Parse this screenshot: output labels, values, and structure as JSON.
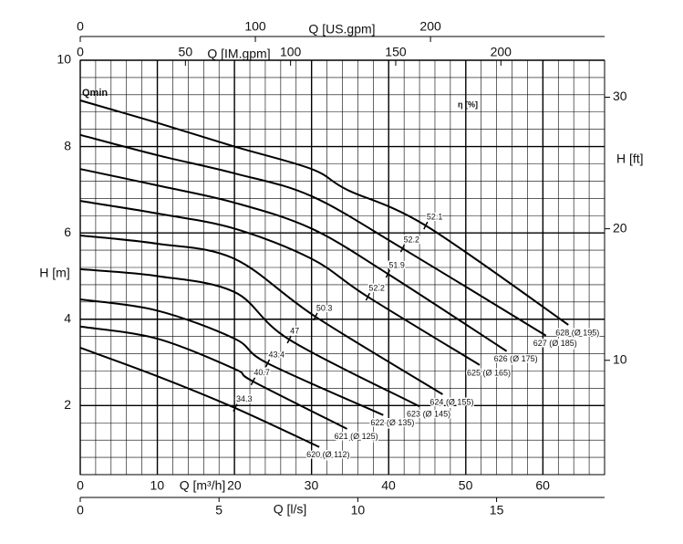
{
  "chart_data": {
    "type": "line",
    "ylabel": "H [m]",
    "xlabel": "Q [m³/h]",
    "xlim": [
      0,
      68
    ],
    "xticks": [
      0,
      10,
      20,
      30,
      40,
      50,
      60
    ],
    "x_minor_ticks": [
      0,
      2,
      4,
      6,
      8,
      10,
      12,
      14,
      16,
      18,
      20,
      22,
      24,
      26,
      28,
      30,
      32,
      34,
      36,
      38,
      40,
      42,
      44,
      46,
      48,
      50,
      52,
      54,
      56,
      58,
      60,
      62,
      64,
      66,
      68
    ],
    "ylim": [
      0.4,
      10
    ],
    "yticks": [
      2,
      4,
      6,
      8,
      10
    ],
    "y_minor_ticks": [
      0.4,
      0.8,
      1.2,
      1.6,
      2.0,
      2.4,
      2.8,
      3.2,
      3.6,
      4.0,
      4.4,
      4.8,
      5.2,
      5.6,
      6.0,
      6.4,
      6.8,
      7.2,
      7.6,
      8.0,
      8.4,
      8.8,
      9.2,
      9.6,
      10.0
    ],
    "grid": true,
    "color": "#000000",
    "x_ls": {
      "label": "Q [l/s]",
      "lim": [
        0,
        18.89
      ],
      "ticks": [
        0,
        5,
        10,
        15
      ]
    },
    "x_usgpm": {
      "label": "Q [US.gpm]",
      "lim": [
        0,
        299.4
      ],
      "ticks": [
        0,
        100,
        200
      ]
    },
    "x_imgpm": {
      "label": "Q [IM.gpm]",
      "lim": [
        0,
        249.3
      ],
      "ticks": [
        0,
        50,
        100,
        150,
        200
      ]
    },
    "y_ft": {
      "label": "H [ft]",
      "lim": [
        1.31,
        32.81
      ],
      "ticks": [
        10,
        20,
        30
      ]
    },
    "annotations": [
      "Qmin",
      "η [%]"
    ],
    "series": [
      {
        "name": "620 (Ø 112)",
        "x": [
          0,
          10,
          20,
          31
        ],
        "values": [
          3.34,
          2.68,
          1.95,
          1.04
        ],
        "eta": 34.3,
        "eta_x": 20.1,
        "eta_y": 1.95
      },
      {
        "name": "621 (Ø 125)",
        "x": [
          0,
          10,
          20,
          22.4,
          34.6
        ],
        "values": [
          3.83,
          3.55,
          2.85,
          2.56,
          1.46
        ],
        "eta": 40.7,
        "eta_x": 22.4,
        "eta_y": 2.56
      },
      {
        "name": "622 (Ø 135)",
        "x": [
          0,
          10,
          20,
          24.3,
          39.3
        ],
        "values": [
          4.46,
          4.2,
          3.55,
          2.98,
          1.78
        ],
        "eta": 43.4,
        "eta_x": 24.3,
        "eta_y": 2.98
      },
      {
        "name": "623 (Ø 145)",
        "x": [
          0,
          10,
          20,
          27.1,
          44
        ],
        "values": [
          5.16,
          5.0,
          4.63,
          3.53,
          1.98
        ],
        "eta": 47.0,
        "eta_x": 27.1,
        "eta_y": 3.53
      },
      {
        "name": "624 (Ø 155)",
        "x": [
          0,
          10,
          20,
          30.5,
          47
        ],
        "values": [
          5.94,
          5.75,
          5.4,
          4.06,
          2.26
        ],
        "eta": 50.3,
        "eta_x": 30.5,
        "eta_y": 4.06
      },
      {
        "name": "625 (Ø 165)",
        "x": [
          0,
          10,
          20,
          30,
          37.3,
          51.8
        ],
        "values": [
          6.74,
          6.45,
          6.1,
          5.4,
          4.52,
          2.94
        ],
        "eta": 52.2,
        "eta_x": 37.3,
        "eta_y": 4.52
      },
      {
        "name": "626 (Ø 175)",
        "x": [
          0,
          10,
          20,
          30,
          39.9,
          55.3
        ],
        "values": [
          7.48,
          7.1,
          6.7,
          6.1,
          5.05,
          3.26
        ],
        "eta": 51.9,
        "eta_x": 39.9,
        "eta_y": 5.05
      },
      {
        "name": "627 (Ø 185)",
        "x": [
          0,
          10,
          20,
          30,
          41.8,
          60.4
        ],
        "values": [
          8.27,
          7.8,
          7.38,
          6.85,
          5.64,
          3.62
        ],
        "eta": 52.2,
        "eta_x": 41.8,
        "eta_y": 5.64
      },
      {
        "name": "628 (Ø 195)",
        "x": [
          0,
          10,
          20,
          30,
          34.6,
          44.8,
          63.3
        ],
        "values": [
          9.07,
          8.55,
          8.0,
          7.48,
          7.0,
          6.17,
          3.87
        ],
        "eta": 52.1,
        "eta_x": 44.8,
        "eta_y": 6.17
      }
    ]
  }
}
